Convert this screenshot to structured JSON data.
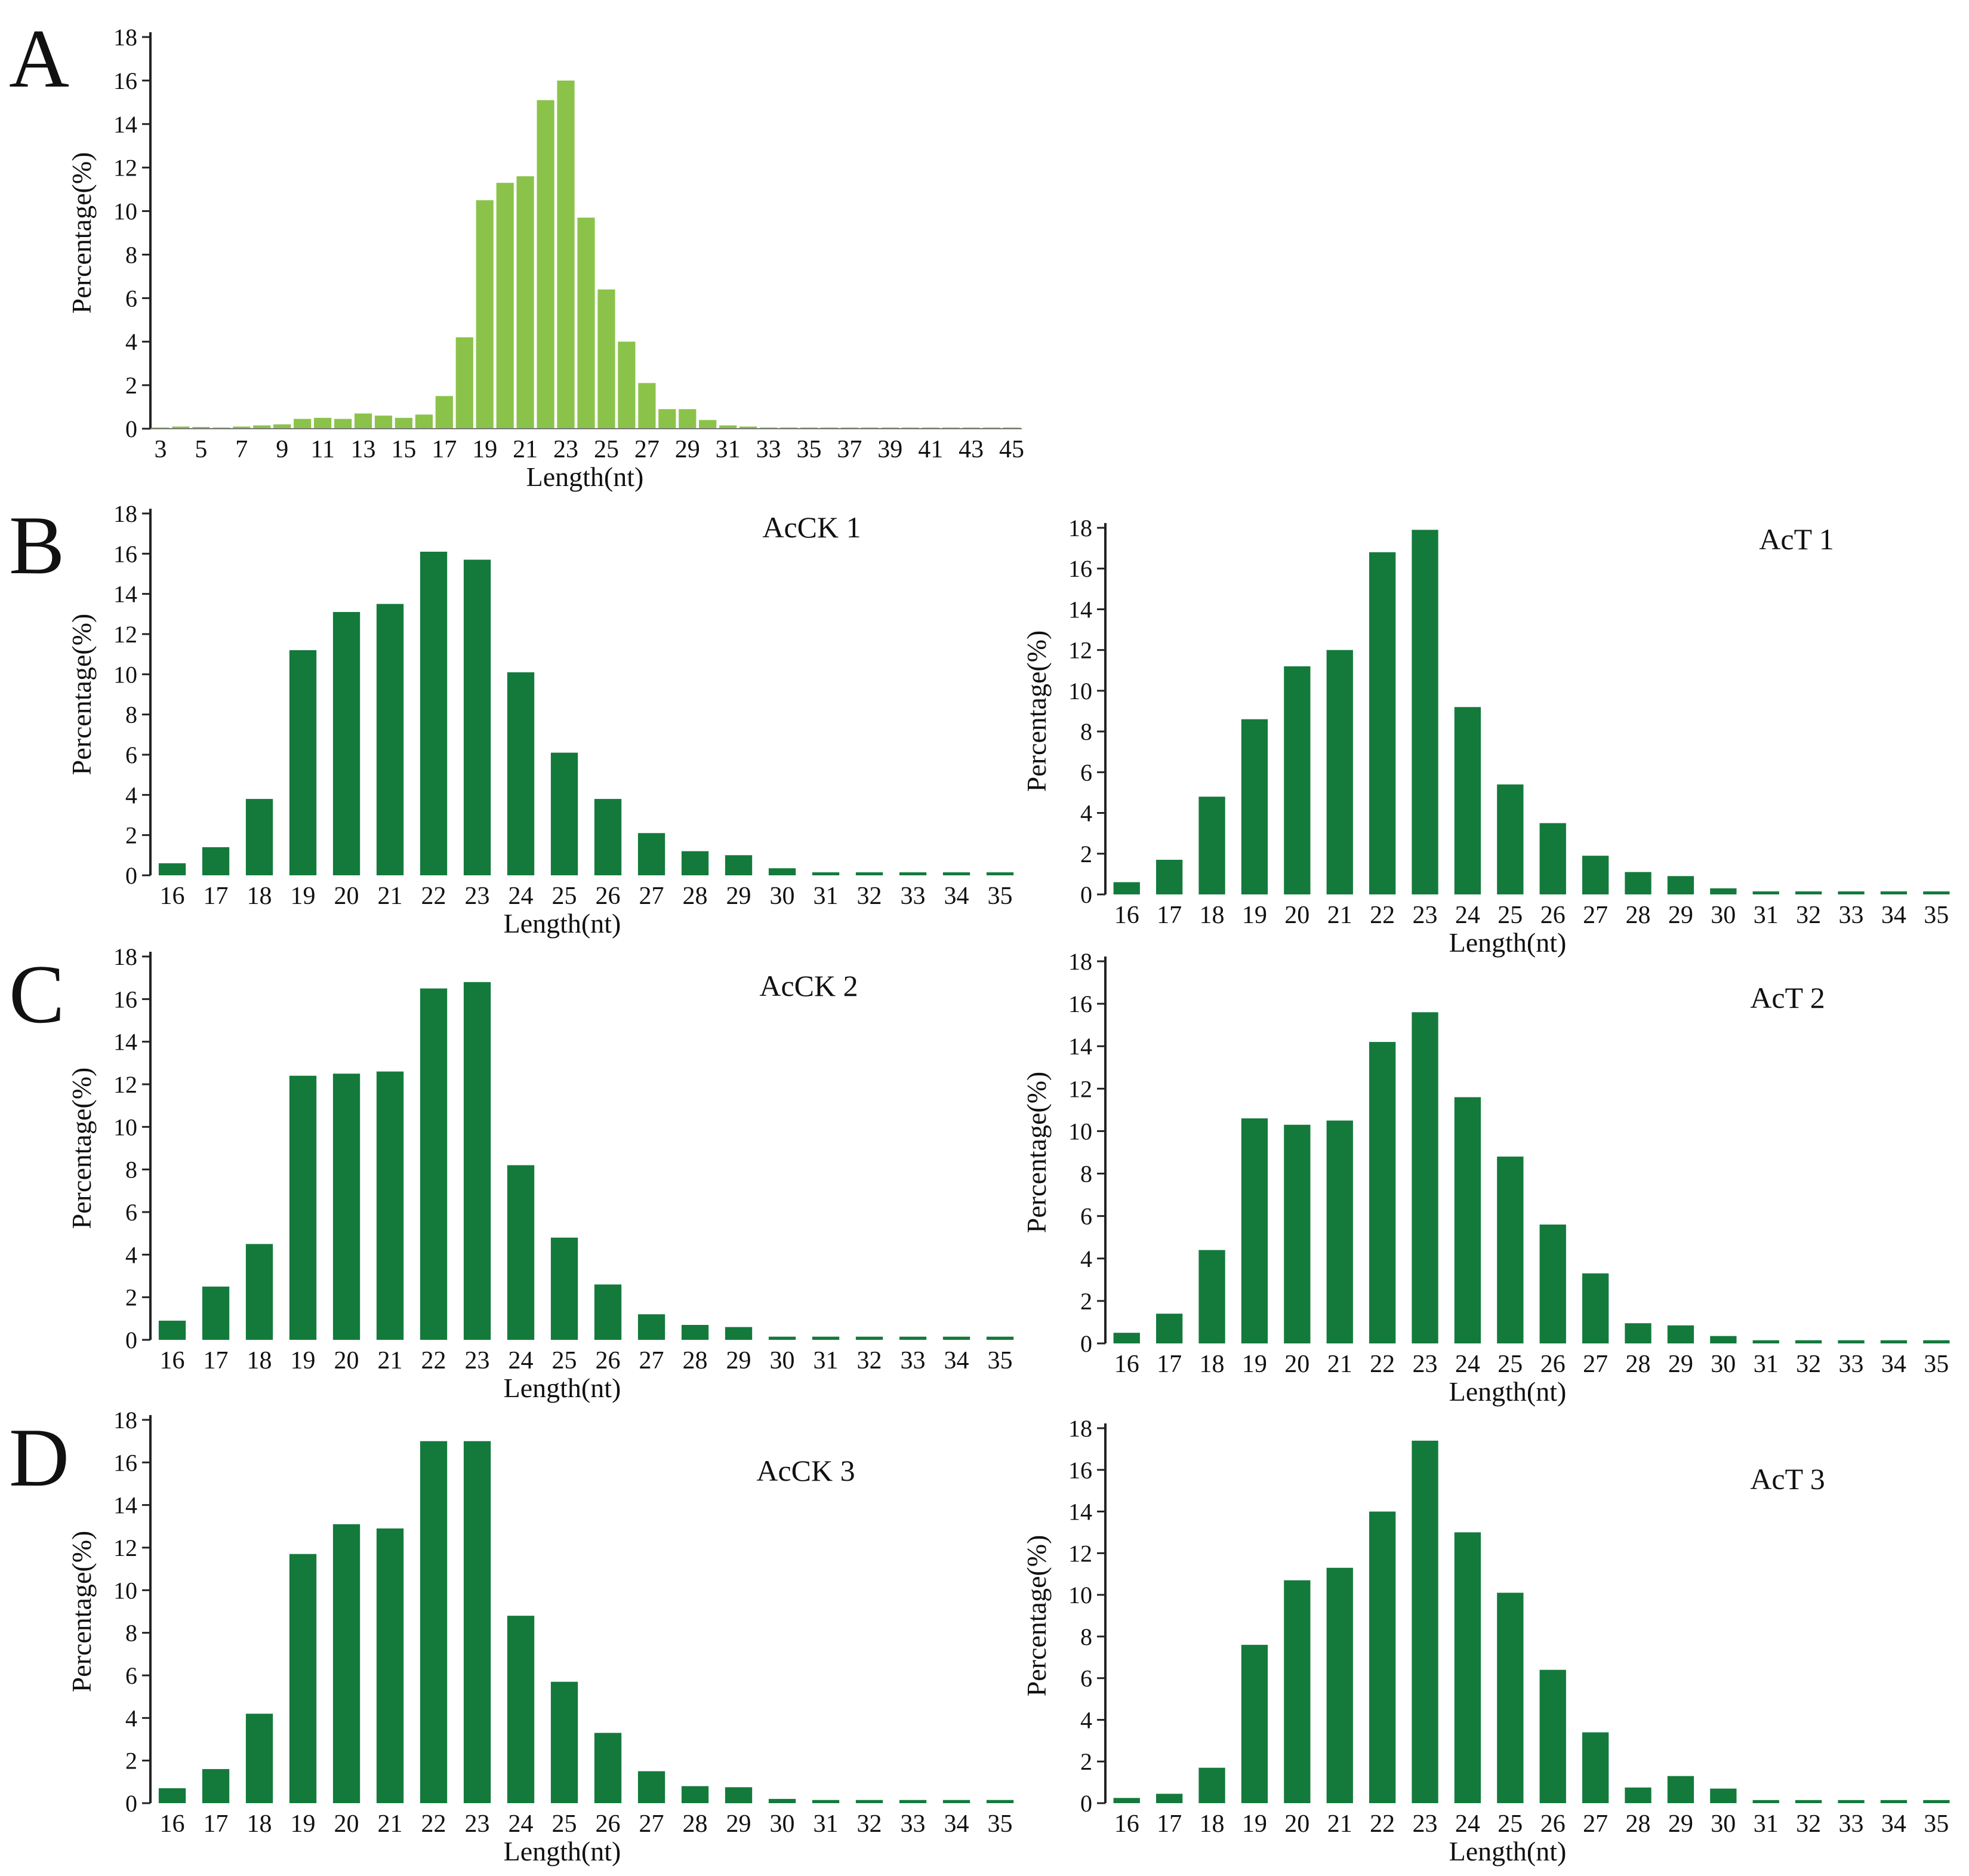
{
  "figure": {
    "bar_color_A": "#8bc34a",
    "bar_color_main": "#137a3c",
    "axis_color": "#222222"
  },
  "chart_data": [
    {
      "id": "A",
      "panel_letter": "A",
      "type": "bar",
      "sample_label": "",
      "xlabel": "Length(nt)",
      "ylabel": "Percentage(%)",
      "ylim": [
        0,
        18
      ],
      "y_ticks": [
        "0",
        "2",
        "4",
        "6",
        "8",
        "10",
        "12",
        "14",
        "16",
        "18"
      ],
      "categories": [
        "3",
        "4",
        "5",
        "6",
        "7",
        "8",
        "9",
        "10",
        "11",
        "12",
        "13",
        "14",
        "15",
        "16",
        "17",
        "18",
        "19",
        "20",
        "21",
        "22",
        "23",
        "24",
        "25",
        "26",
        "27",
        "28",
        "29",
        "30",
        "31",
        "32",
        "33",
        "34",
        "35",
        "36",
        "37",
        "38",
        "39",
        "40",
        "41",
        "42",
        "43",
        "44",
        "45"
      ],
      "tick_labels": [
        "3",
        "5",
        "7",
        "9",
        "11",
        "13",
        "15",
        "17",
        "19",
        "21",
        "23",
        "25",
        "27",
        "29",
        "31",
        "33",
        "35",
        "37",
        "39",
        "41",
        "43",
        "45"
      ],
      "values": [
        0.05,
        0.1,
        0.08,
        0.05,
        0.1,
        0.15,
        0.2,
        0.45,
        0.5,
        0.45,
        0.7,
        0.6,
        0.5,
        0.65,
        1.5,
        4.2,
        10.5,
        11.3,
        11.6,
        15.1,
        16.0,
        9.7,
        6.4,
        4.0,
        2.1,
        0.9,
        0.9,
        0.4,
        0.15,
        0.1,
        0.05,
        0.05,
        0.03,
        0.03,
        0.03,
        0.03,
        0.03,
        0.03,
        0.02,
        0.02,
        0.02,
        0.02,
        0.02
      ]
    },
    {
      "id": "B1",
      "panel_letter": "B",
      "type": "bar",
      "sample_label": "AcCK 1",
      "xlabel": "Length(nt)",
      "ylabel": "Percentage(%)",
      "ylim": [
        0,
        18
      ],
      "y_ticks": [
        "0",
        "2",
        "4",
        "6",
        "8",
        "10",
        "12",
        "14",
        "16",
        "18"
      ],
      "categories": [
        "16",
        "17",
        "18",
        "19",
        "20",
        "21",
        "22",
        "23",
        "24",
        "25",
        "26",
        "27",
        "28",
        "29",
        "30",
        "31",
        "32",
        "33",
        "34",
        "35"
      ],
      "tick_labels": [
        "16",
        "17",
        "18",
        "19",
        "20",
        "21",
        "22",
        "23",
        "24",
        "25",
        "26",
        "27",
        "28",
        "29",
        "30",
        "31",
        "32",
        "33",
        "34",
        "35"
      ],
      "values": [
        0.6,
        1.4,
        3.8,
        11.2,
        13.1,
        13.5,
        16.1,
        15.7,
        10.1,
        6.1,
        3.8,
        2.1,
        1.2,
        1.0,
        0.35,
        0.15,
        0.15,
        0.15,
        0.15,
        0.15
      ]
    },
    {
      "id": "B2",
      "panel_letter": "",
      "type": "bar",
      "sample_label": "AcT 1",
      "xlabel": "Length(nt)",
      "ylabel": "Percentage(%)",
      "ylim": [
        0,
        18
      ],
      "y_ticks": [
        "0",
        "2",
        "4",
        "6",
        "8",
        "10",
        "12",
        "14",
        "16",
        "18"
      ],
      "categories": [
        "16",
        "17",
        "18",
        "19",
        "20",
        "21",
        "22",
        "23",
        "24",
        "25",
        "26",
        "27",
        "28",
        "29",
        "30",
        "31",
        "32",
        "33",
        "34",
        "35"
      ],
      "tick_labels": [
        "16",
        "17",
        "18",
        "19",
        "20",
        "21",
        "22",
        "23",
        "24",
        "25",
        "26",
        "27",
        "28",
        "29",
        "30",
        "31",
        "32",
        "33",
        "34",
        "35"
      ],
      "values": [
        0.6,
        1.7,
        4.8,
        8.6,
        11.2,
        12.0,
        16.8,
        17.9,
        9.2,
        5.4,
        3.5,
        1.9,
        1.1,
        0.9,
        0.3,
        0.15,
        0.15,
        0.15,
        0.15,
        0.15
      ]
    },
    {
      "id": "C1",
      "panel_letter": "C",
      "type": "bar",
      "sample_label": "AcCK 2",
      "xlabel": "Length(nt)",
      "ylabel": "Percentage(%)",
      "ylim": [
        0,
        18
      ],
      "y_ticks": [
        "0",
        "2",
        "4",
        "6",
        "8",
        "10",
        "12",
        "14",
        "16",
        "18"
      ],
      "categories": [
        "16",
        "17",
        "18",
        "19",
        "20",
        "21",
        "22",
        "23",
        "24",
        "25",
        "26",
        "27",
        "28",
        "29",
        "30",
        "31",
        "32",
        "33",
        "34",
        "35"
      ],
      "tick_labels": [
        "16",
        "17",
        "18",
        "19",
        "20",
        "21",
        "22",
        "23",
        "24",
        "25",
        "26",
        "27",
        "28",
        "29",
        "30",
        "31",
        "32",
        "33",
        "34",
        "35"
      ],
      "values": [
        0.9,
        2.5,
        4.5,
        12.4,
        12.5,
        12.6,
        16.5,
        16.8,
        8.2,
        4.8,
        2.6,
        1.2,
        0.7,
        0.6,
        0.15,
        0.15,
        0.15,
        0.15,
        0.15,
        0.15
      ]
    },
    {
      "id": "C2",
      "panel_letter": "",
      "type": "bar",
      "sample_label": "AcT 2",
      "xlabel": "Length(nt)",
      "ylabel": "Percentage(%)",
      "ylim": [
        0,
        18
      ],
      "y_ticks": [
        "0",
        "2",
        "4",
        "6",
        "8",
        "10",
        "12",
        "14",
        "16",
        "18"
      ],
      "categories": [
        "16",
        "17",
        "18",
        "19",
        "20",
        "21",
        "22",
        "23",
        "24",
        "25",
        "26",
        "27",
        "28",
        "29",
        "30",
        "31",
        "32",
        "33",
        "34",
        "35"
      ],
      "tick_labels": [
        "16",
        "17",
        "18",
        "19",
        "20",
        "21",
        "22",
        "23",
        "24",
        "25",
        "26",
        "27",
        "28",
        "29",
        "30",
        "31",
        "32",
        "33",
        "34",
        "35"
      ],
      "values": [
        0.5,
        1.4,
        4.4,
        10.6,
        10.3,
        10.5,
        14.2,
        15.6,
        11.6,
        8.8,
        5.6,
        3.3,
        0.95,
        0.85,
        0.35,
        0.15,
        0.15,
        0.15,
        0.15,
        0.15
      ]
    },
    {
      "id": "D1",
      "panel_letter": "D",
      "type": "bar",
      "sample_label": "AcCK 3",
      "xlabel": "Length(nt)",
      "ylabel": "Percentage(%)",
      "ylim": [
        0,
        18
      ],
      "y_ticks": [
        "0",
        "2",
        "4",
        "6",
        "8",
        "10",
        "12",
        "14",
        "16",
        "18"
      ],
      "categories": [
        "16",
        "17",
        "18",
        "19",
        "20",
        "21",
        "22",
        "23",
        "24",
        "25",
        "26",
        "27",
        "28",
        "29",
        "30",
        "31",
        "32",
        "33",
        "34",
        "35"
      ],
      "tick_labels": [
        "16",
        "17",
        "18",
        "19",
        "20",
        "21",
        "22",
        "23",
        "24",
        "25",
        "26",
        "27",
        "28",
        "29",
        "30",
        "31",
        "32",
        "33",
        "34",
        "35"
      ],
      "values": [
        0.7,
        1.6,
        4.2,
        11.7,
        13.1,
        12.9,
        17.0,
        17.0,
        8.8,
        5.7,
        3.3,
        1.5,
        0.8,
        0.75,
        0.2,
        0.15,
        0.15,
        0.15,
        0.15,
        0.15
      ]
    },
    {
      "id": "D2",
      "panel_letter": "",
      "type": "bar",
      "sample_label": "AcT 3",
      "xlabel": "Length(nt)",
      "ylabel": "Percentage(%)",
      "ylim": [
        0,
        18
      ],
      "y_ticks": [
        "0",
        "2",
        "4",
        "6",
        "8",
        "10",
        "12",
        "14",
        "16",
        "18"
      ],
      "categories": [
        "16",
        "17",
        "18",
        "19",
        "20",
        "21",
        "22",
        "23",
        "24",
        "25",
        "26",
        "27",
        "28",
        "29",
        "30",
        "31",
        "32",
        "33",
        "34",
        "35"
      ],
      "tick_labels": [
        "16",
        "17",
        "18",
        "19",
        "20",
        "21",
        "22",
        "23",
        "24",
        "25",
        "26",
        "27",
        "28",
        "29",
        "30",
        "31",
        "32",
        "33",
        "34",
        "35"
      ],
      "values": [
        0.25,
        0.45,
        1.7,
        7.6,
        10.7,
        11.3,
        14.0,
        17.4,
        13.0,
        10.1,
        6.4,
        3.4,
        0.75,
        1.3,
        0.7,
        0.15,
        0.15,
        0.15,
        0.15,
        0.15
      ]
    }
  ]
}
